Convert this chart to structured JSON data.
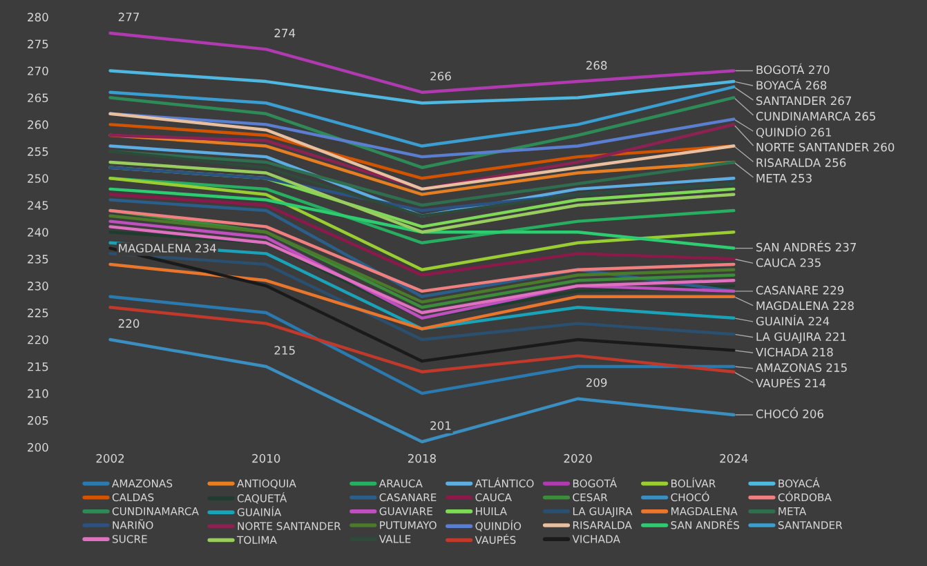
{
  "chart_data": {
    "type": "line",
    "categories": [
      "2002",
      "2010",
      "2018",
      "2020",
      "2024"
    ],
    "ylim": [
      200,
      280
    ],
    "yticks": [
      200,
      205,
      210,
      215,
      220,
      225,
      230,
      235,
      240,
      245,
      250,
      255,
      260,
      265,
      270,
      275,
      280
    ],
    "legend": "bottom",
    "line_style": "solid",
    "series": [
      {
        "name": "AMAZONAS",
        "color": "#2a7ab0",
        "values": [
          228,
          225,
          210,
          215,
          215
        ],
        "value_labels": [
          null,
          null,
          null,
          null,
          "AMAZONAS 215"
        ]
      },
      {
        "name": "ANTIOQUIA",
        "color": "#e67e22",
        "values": [
          258,
          256,
          247,
          251,
          253
        ]
      },
      {
        "name": "ARAUCA",
        "color": "#27ae60",
        "values": [
          250,
          248,
          238,
          242,
          244
        ]
      },
      {
        "name": "ATLÁNTICO",
        "color": "#5dade2",
        "values": [
          256,
          254,
          243,
          248,
          250
        ]
      },
      {
        "name": "BOGOTÁ",
        "color": "#b03ab0",
        "values": [
          277,
          274,
          266,
          268,
          270
        ],
        "value_labels": [
          "277",
          "274",
          "266",
          "268",
          "BOGOTÁ 270"
        ]
      },
      {
        "name": "BOLÍVAR",
        "color": "#9acd32",
        "values": [
          250,
          247,
          233,
          238,
          240
        ]
      },
      {
        "name": "BOYACÁ",
        "color": "#4fb8e0",
        "values": [
          270,
          268,
          264,
          265,
          268
        ],
        "value_labels": [
          null,
          null,
          null,
          null,
          "BOYACÁ 268"
        ]
      },
      {
        "name": "CALDAS",
        "color": "#d35400",
        "values": [
          260,
          258,
          250,
          254,
          256
        ]
      },
      {
        "name": "CAQUETÁ",
        "color": "#1e3d2f",
        "values": [
          240,
          238,
          224,
          229,
          230
        ]
      },
      {
        "name": "CASANARE",
        "color": "#2b5f8a",
        "values": [
          246,
          244,
          228,
          233,
          229
        ],
        "value_labels": [
          null,
          null,
          null,
          null,
          "CASANARE 229"
        ]
      },
      {
        "name": "CAUCA",
        "color": "#8b1a4a",
        "values": [
          247,
          245,
          232,
          236,
          235
        ],
        "value_labels": [
          null,
          null,
          null,
          null,
          "CAUCA 235"
        ]
      },
      {
        "name": "CESAR",
        "color": "#3c8c3c",
        "values": [
          244,
          240,
          226,
          231,
          232
        ]
      },
      {
        "name": "CHOCÓ",
        "color": "#3a8fc0",
        "values": [
          220,
          215,
          201,
          209,
          206
        ],
        "value_labels": [
          "220",
          "215",
          "201",
          "209",
          "CHOCÓ 206"
        ]
      },
      {
        "name": "CÓRDOBA",
        "color": "#f08080",
        "values": [
          244,
          241,
          229,
          233,
          234
        ]
      },
      {
        "name": "CUNDINAMARCA",
        "color": "#2e8b57",
        "values": [
          265,
          262,
          252,
          258,
          265
        ],
        "value_labels": [
          null,
          null,
          null,
          null,
          "CUNDINAMARCA 265"
        ]
      },
      {
        "name": "GUAINÍA",
        "color": "#1aa3b8",
        "values": [
          238,
          236,
          222,
          226,
          224
        ],
        "value_labels": [
          null,
          null,
          null,
          null,
          "GUAINÍA 224"
        ]
      },
      {
        "name": "GUAVIARE",
        "color": "#c050c0",
        "values": [
          242,
          239,
          224,
          230,
          229
        ]
      },
      {
        "name": "HUILA",
        "color": "#7ed957",
        "values": [
          252,
          250,
          241,
          246,
          248
        ]
      },
      {
        "name": "LA GUAJIRA",
        "color": "#2a4f6f",
        "values": [
          236,
          234,
          220,
          223,
          221
        ],
        "value_labels": [
          null,
          null,
          null,
          null,
          "LA GUAJIRA 221"
        ]
      },
      {
        "name": "MAGDALENA",
        "color": "#e8762c",
        "values": [
          234,
          231,
          222,
          228,
          228
        ],
        "value_labels": [
          "MAGDALENA 234",
          null,
          null,
          null,
          "MAGDALENA 228"
        ]
      },
      {
        "name": "META",
        "color": "#2f6f4f",
        "values": [
          255,
          253,
          245,
          249,
          253
        ],
        "value_labels": [
          null,
          null,
          null,
          null,
          "META 253"
        ]
      },
      {
        "name": "NARIÑO",
        "color": "#2c5282",
        "values": [
          252,
          250,
          244,
          247,
          249
        ]
      },
      {
        "name": "NORTE SANTANDER",
        "color": "#8b2252",
        "values": [
          258,
          257,
          248,
          253,
          260
        ],
        "value_labels": [
          null,
          null,
          null,
          null,
          "NORTE SANTANDER 260"
        ]
      },
      {
        "name": "PUTUMAYO",
        "color": "#4a7a2a",
        "values": [
          243,
          240,
          227,
          232,
          233
        ]
      },
      {
        "name": "QUINDÍO",
        "color": "#5a7fd0",
        "values": [
          262,
          260,
          254,
          256,
          261
        ],
        "value_labels": [
          null,
          null,
          null,
          null,
          "QUINDÍO 261"
        ]
      },
      {
        "name": "RISARALDA",
        "color": "#e8c0a0",
        "values": [
          262,
          259,
          248,
          252,
          256
        ],
        "value_labels": [
          null,
          null,
          null,
          null,
          "RISARALDA 256"
        ]
      },
      {
        "name": "SAN ANDRÉS",
        "color": "#2ecc71",
        "values": [
          248,
          246,
          240,
          240,
          237
        ],
        "value_labels": [
          null,
          null,
          null,
          null,
          "SAN ANDRÉS 237"
        ]
      },
      {
        "name": "SANTANDER",
        "color": "#3a9fd0",
        "values": [
          266,
          264,
          256,
          260,
          267
        ],
        "value_labels": [
          null,
          null,
          null,
          null,
          "SANTANDER 267"
        ]
      },
      {
        "name": "SUCRE",
        "color": "#e070c0",
        "values": [
          241,
          238,
          225,
          230,
          231
        ]
      },
      {
        "name": "TOLIMA",
        "color": "#9acd60",
        "values": [
          253,
          251,
          240,
          245,
          247
        ]
      },
      {
        "name": "VALLE",
        "color": "#2d4a3a",
        "values": [
          255,
          252,
          243,
          247,
          249
        ]
      },
      {
        "name": "VAUPÉS",
        "color": "#c0392b",
        "values": [
          226,
          223,
          214,
          217,
          214
        ],
        "value_labels": [
          null,
          null,
          null,
          null,
          "VAUPÉS 214"
        ]
      },
      {
        "name": "VICHADA",
        "color": "#1a1a1a",
        "values": [
          237,
          230,
          216,
          220,
          218
        ],
        "value_labels": [
          null,
          null,
          null,
          null,
          "VICHADA 218"
        ]
      }
    ]
  }
}
